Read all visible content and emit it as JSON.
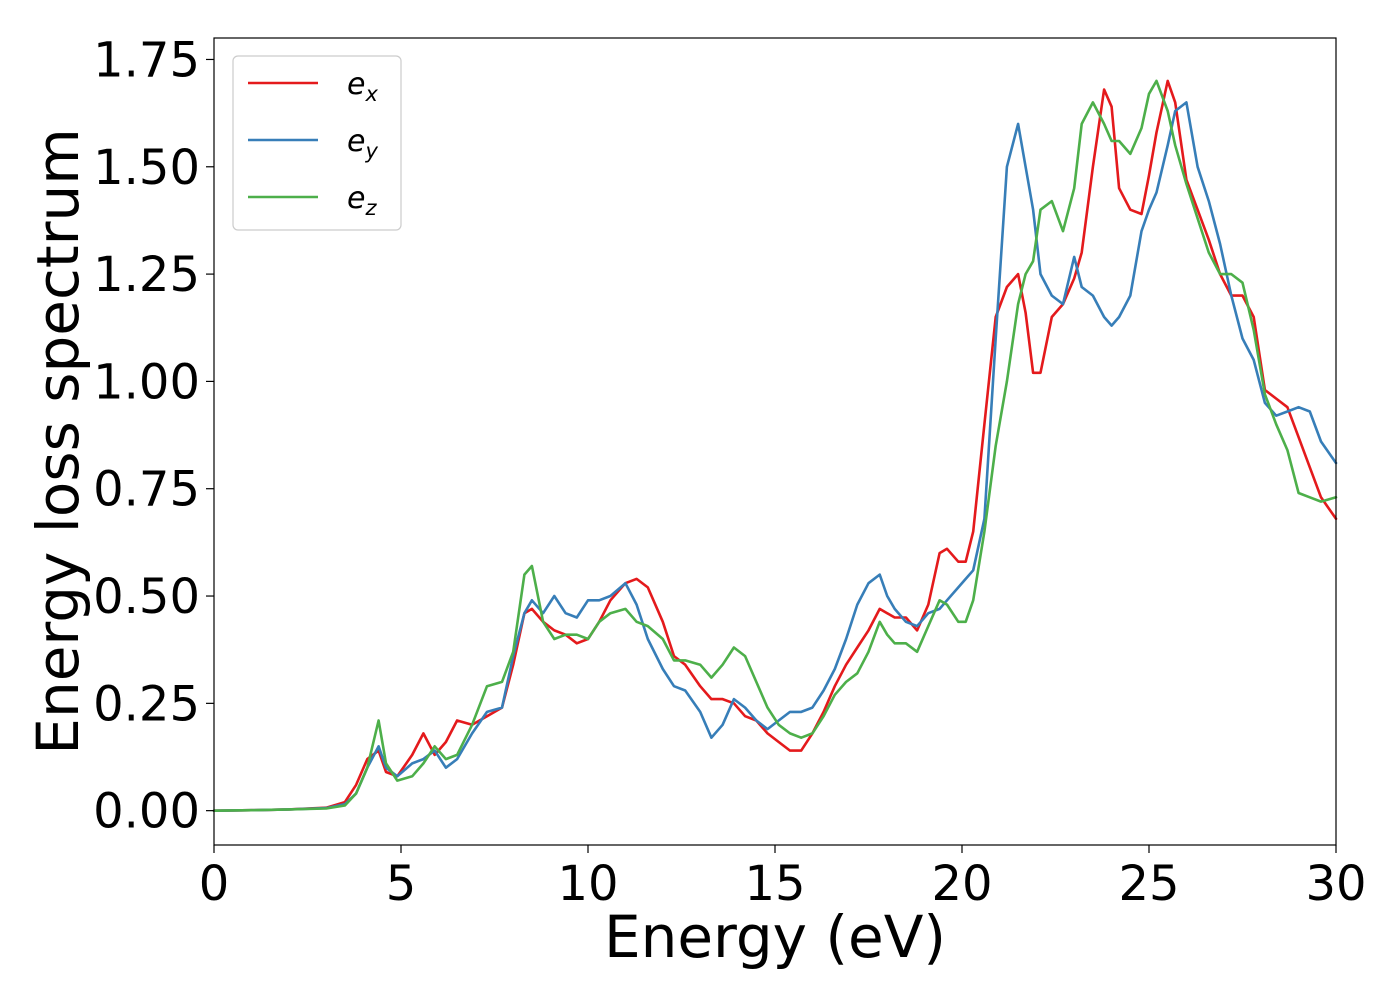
{
  "chart_data": {
    "type": "line",
    "xlabel": "Energy (eV)",
    "ylabel": "Energy loss spectrum",
    "xlim": [
      0,
      30
    ],
    "ylim": [
      -0.08,
      1.8
    ],
    "xticks": [
      "0",
      "5",
      "10",
      "15",
      "20",
      "25",
      "30"
    ],
    "yticks": [
      "0.00",
      "0.25",
      "0.50",
      "0.75",
      "1.00",
      "1.25",
      "1.50",
      "1.75"
    ],
    "grid": false,
    "legend_position": "top-left",
    "series": [
      {
        "name": "e",
        "subscript": "x",
        "color": "#e41a1c",
        "x": [
          0,
          1,
          2,
          3,
          3.5,
          3.8,
          4.1,
          4.4,
          4.6,
          4.9,
          5.3,
          5.6,
          5.9,
          6.2,
          6.5,
          6.9,
          7.3,
          7.7,
          8,
          8.3,
          8.5,
          8.8,
          9.1,
          9.4,
          9.7,
          10,
          10.3,
          10.6,
          11,
          11.3,
          11.6,
          12,
          12.3,
          12.6,
          13,
          13.3,
          13.6,
          13.9,
          14.2,
          14.5,
          14.8,
          15.1,
          15.4,
          15.7,
          16,
          16.3,
          16.6,
          16.9,
          17.2,
          17.5,
          17.8,
          18,
          18.2,
          18.5,
          18.8,
          19.1,
          19.4,
          19.6,
          19.9,
          20.1,
          20.3,
          20.6,
          20.9,
          21.2,
          21.5,
          21.7,
          21.9,
          22.1,
          22.4,
          22.7,
          23,
          23.2,
          23.5,
          23.8,
          24,
          24.2,
          24.5,
          24.8,
          25,
          25.2,
          25.5,
          25.7,
          26,
          26.3,
          26.6,
          26.9,
          27.2,
          27.5,
          27.8,
          28.1,
          28.4,
          28.7,
          29,
          29.3,
          29.6,
          30
        ],
        "y": [
          0,
          0.001,
          0.003,
          0.007,
          0.02,
          0.06,
          0.12,
          0.14,
          0.09,
          0.08,
          0.13,
          0.18,
          0.13,
          0.16,
          0.21,
          0.2,
          0.22,
          0.24,
          0.34,
          0.46,
          0.47,
          0.44,
          0.42,
          0.41,
          0.39,
          0.4,
          0.44,
          0.49,
          0.53,
          0.54,
          0.52,
          0.44,
          0.36,
          0.34,
          0.29,
          0.26,
          0.26,
          0.25,
          0.22,
          0.21,
          0.18,
          0.16,
          0.14,
          0.14,
          0.18,
          0.23,
          0.29,
          0.34,
          0.38,
          0.42,
          0.47,
          0.46,
          0.45,
          0.45,
          0.42,
          0.48,
          0.6,
          0.61,
          0.58,
          0.58,
          0.65,
          0.9,
          1.15,
          1.22,
          1.25,
          1.16,
          1.02,
          1.02,
          1.15,
          1.18,
          1.24,
          1.3,
          1.5,
          1.68,
          1.64,
          1.45,
          1.4,
          1.39,
          1.48,
          1.58,
          1.7,
          1.65,
          1.47,
          1.4,
          1.33,
          1.25,
          1.2,
          1.2,
          1.15,
          0.98,
          0.96,
          0.94,
          0.87,
          0.8,
          0.73,
          0.68
        ]
      },
      {
        "name": "e",
        "subscript": "y",
        "color": "#377eb8",
        "x": [
          0,
          1,
          2,
          3,
          3.5,
          3.8,
          4.1,
          4.4,
          4.6,
          4.9,
          5.3,
          5.6,
          5.9,
          6.2,
          6.5,
          6.9,
          7.3,
          7.7,
          8,
          8.3,
          8.5,
          8.8,
          9.1,
          9.4,
          9.7,
          10,
          10.3,
          10.6,
          11,
          11.3,
          11.6,
          12,
          12.3,
          12.6,
          13,
          13.3,
          13.6,
          13.9,
          14.2,
          14.5,
          14.8,
          15.1,
          15.4,
          15.7,
          16,
          16.3,
          16.6,
          16.9,
          17.2,
          17.5,
          17.8,
          18,
          18.2,
          18.5,
          18.8,
          19.1,
          19.4,
          19.6,
          19.9,
          20.1,
          20.3,
          20.6,
          20.9,
          21.2,
          21.5,
          21.7,
          21.9,
          22.1,
          22.4,
          22.7,
          23,
          23.2,
          23.5,
          23.8,
          24,
          24.2,
          24.5,
          24.8,
          25,
          25.2,
          25.5,
          25.7,
          26,
          26.3,
          26.6,
          26.9,
          27.2,
          27.5,
          27.8,
          28.1,
          28.4,
          28.7,
          29,
          29.3,
          29.6,
          30
        ],
        "y": [
          0,
          0.001,
          0.003,
          0.006,
          0.015,
          0.04,
          0.1,
          0.15,
          0.1,
          0.08,
          0.11,
          0.12,
          0.14,
          0.1,
          0.12,
          0.18,
          0.23,
          0.24,
          0.36,
          0.46,
          0.49,
          0.46,
          0.5,
          0.46,
          0.45,
          0.49,
          0.49,
          0.5,
          0.53,
          0.48,
          0.4,
          0.33,
          0.29,
          0.28,
          0.23,
          0.17,
          0.2,
          0.26,
          0.24,
          0.21,
          0.19,
          0.21,
          0.23,
          0.23,
          0.24,
          0.28,
          0.33,
          0.4,
          0.48,
          0.53,
          0.55,
          0.5,
          0.47,
          0.44,
          0.43,
          0.46,
          0.47,
          0.49,
          0.52,
          0.54,
          0.56,
          0.68,
          1.1,
          1.5,
          1.6,
          1.5,
          1.4,
          1.25,
          1.2,
          1.18,
          1.29,
          1.22,
          1.2,
          1.15,
          1.13,
          1.15,
          1.2,
          1.35,
          1.4,
          1.44,
          1.55,
          1.63,
          1.65,
          1.5,
          1.42,
          1.32,
          1.2,
          1.1,
          1.05,
          0.95,
          0.92,
          0.93,
          0.94,
          0.93,
          0.86,
          0.81
        ]
      },
      {
        "name": "e",
        "subscript": "z",
        "color": "#4daf4a",
        "x": [
          0,
          1,
          2,
          3,
          3.5,
          3.8,
          4.1,
          4.4,
          4.6,
          4.9,
          5.3,
          5.6,
          5.9,
          6.2,
          6.5,
          6.9,
          7.3,
          7.7,
          8,
          8.3,
          8.5,
          8.8,
          9.1,
          9.4,
          9.7,
          10,
          10.3,
          10.6,
          11,
          11.3,
          11.6,
          12,
          12.3,
          12.6,
          13,
          13.3,
          13.6,
          13.9,
          14.2,
          14.5,
          14.8,
          15.1,
          15.4,
          15.7,
          16,
          16.3,
          16.6,
          16.9,
          17.2,
          17.5,
          17.8,
          18,
          18.2,
          18.5,
          18.8,
          19.1,
          19.4,
          19.6,
          19.9,
          20.1,
          20.3,
          20.6,
          20.9,
          21.2,
          21.5,
          21.7,
          21.9,
          22.1,
          22.4,
          22.7,
          23,
          23.2,
          23.5,
          23.8,
          24,
          24.2,
          24.5,
          24.8,
          25,
          25.2,
          25.5,
          25.7,
          26,
          26.3,
          26.6,
          26.9,
          27.2,
          27.5,
          27.8,
          28.1,
          28.4,
          28.7,
          29,
          29.3,
          29.6,
          30
        ],
        "y": [
          0,
          0.001,
          0.003,
          0.005,
          0.012,
          0.04,
          0.1,
          0.21,
          0.11,
          0.07,
          0.08,
          0.11,
          0.15,
          0.12,
          0.13,
          0.2,
          0.29,
          0.3,
          0.37,
          0.55,
          0.57,
          0.44,
          0.4,
          0.41,
          0.41,
          0.4,
          0.44,
          0.46,
          0.47,
          0.44,
          0.43,
          0.4,
          0.35,
          0.35,
          0.34,
          0.31,
          0.34,
          0.38,
          0.36,
          0.3,
          0.24,
          0.2,
          0.18,
          0.17,
          0.18,
          0.22,
          0.27,
          0.3,
          0.32,
          0.37,
          0.44,
          0.41,
          0.39,
          0.39,
          0.37,
          0.43,
          0.49,
          0.48,
          0.44,
          0.44,
          0.49,
          0.65,
          0.85,
          1.0,
          1.18,
          1.25,
          1.28,
          1.4,
          1.42,
          1.35,
          1.45,
          1.6,
          1.65,
          1.6,
          1.56,
          1.56,
          1.53,
          1.59,
          1.67,
          1.7,
          1.63,
          1.55,
          1.46,
          1.38,
          1.3,
          1.25,
          1.25,
          1.23,
          1.12,
          0.97,
          0.9,
          0.84,
          0.74,
          0.73,
          0.72,
          0.73
        ]
      }
    ]
  }
}
